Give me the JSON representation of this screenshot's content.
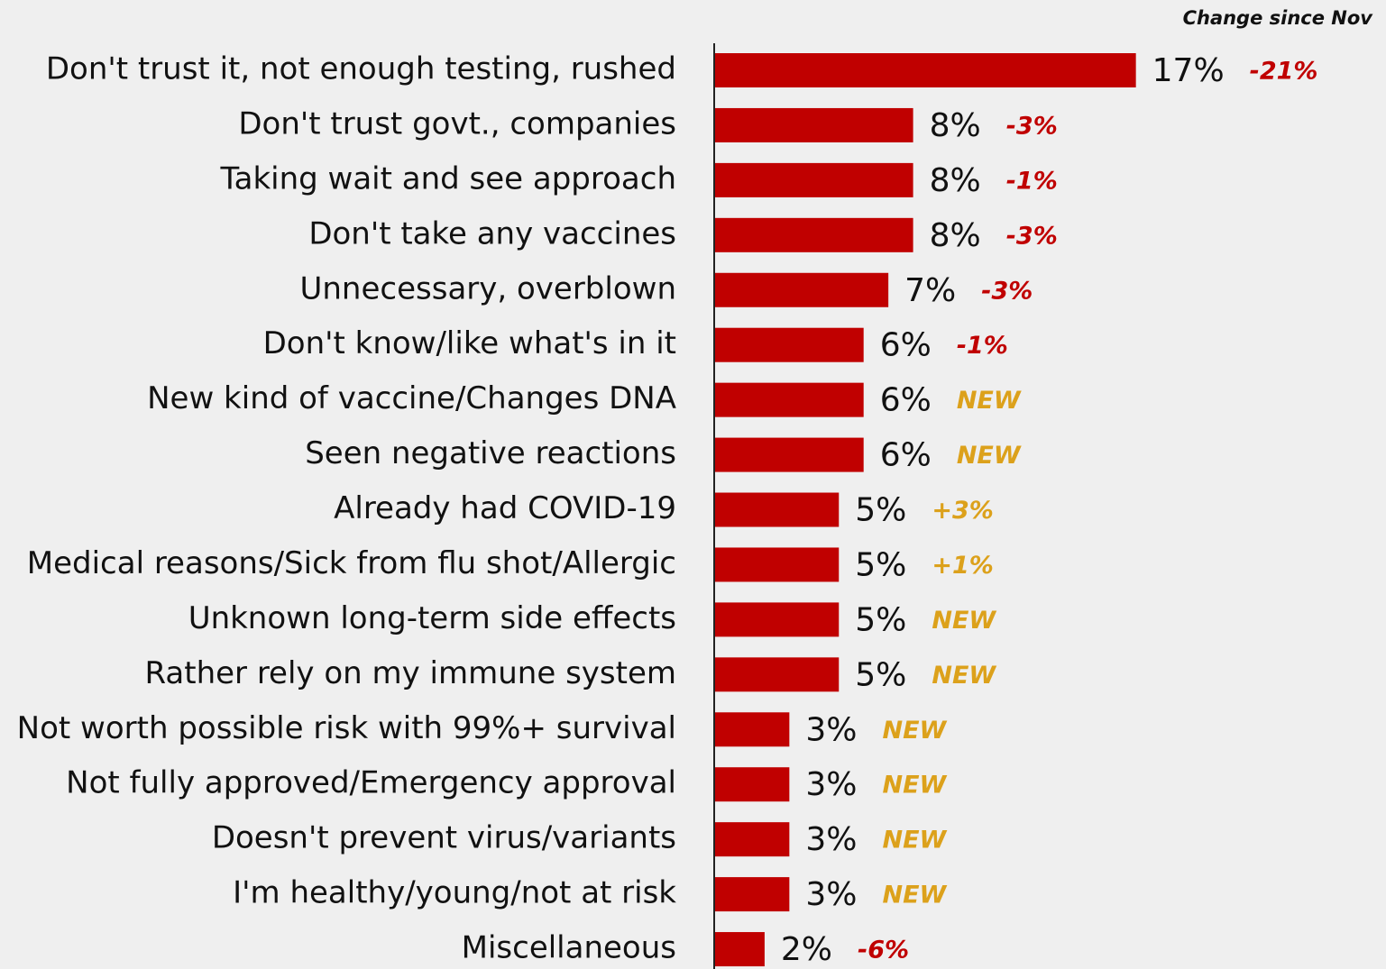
{
  "chart_data": {
    "type": "bar",
    "orientation": "horizontal",
    "header": "Change since Nov",
    "categories": [
      "Don't trust it, not enough testing, rushed",
      "Don't trust govt., companies",
      "Taking wait and see approach",
      "Don't take any vaccines",
      "Unnecessary, overblown",
      "Don't know/like what's in it",
      "New kind of vaccine/Changes DNA",
      "Seen negative reactions",
      "Already had COVID-19",
      "Medical reasons/Sick from flu shot/Allergic",
      "Unknown long-term side effects",
      "Rather rely on my immune system",
      "Not worth possible risk with 99%+ survival",
      "Not fully approved/Emergency approval",
      "Doesn't prevent virus/variants",
      "I'm healthy/young/not at risk",
      "Miscellaneous"
    ],
    "values": [
      17,
      8,
      8,
      8,
      7,
      6,
      6,
      6,
      5,
      5,
      5,
      5,
      3,
      3,
      3,
      3,
      2
    ],
    "value_labels": [
      "17%",
      "8%",
      "8%",
      "8%",
      "7%",
      "6%",
      "6%",
      "6%",
      "5%",
      "5%",
      "5%",
      "5%",
      "3%",
      "3%",
      "3%",
      "3%",
      "2%"
    ],
    "changes": [
      "-21%",
      "-3%",
      "-1%",
      "-3%",
      "-3%",
      "-1%",
      "NEW",
      "NEW",
      "+3%",
      "+1%",
      "NEW",
      "NEW",
      "NEW",
      "NEW",
      "NEW",
      "NEW",
      "-6%"
    ],
    "color": "#c00000",
    "negative_change_color": "#c00000",
    "other_change_color": "#dca11b"
  }
}
